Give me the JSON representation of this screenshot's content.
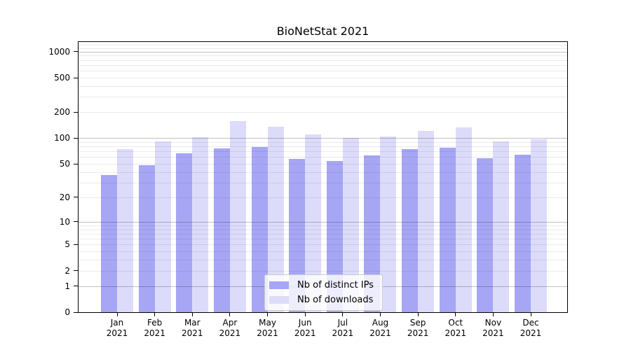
{
  "title": "BioNetStat 2021",
  "chart_data": {
    "type": "bar",
    "title": "BioNetStat 2021",
    "xlabel": "",
    "ylabel": "",
    "scale": "log1p",
    "grid": true,
    "categories": [
      "Jan 2021",
      "Feb 2021",
      "Mar 2021",
      "Apr 2021",
      "May 2021",
      "Jun 2021",
      "Jul 2021",
      "Aug 2021",
      "Sep 2021",
      "Oct 2021",
      "Nov 2021",
      "Dec 2021"
    ],
    "x_tick_months": [
      "Jan",
      "Feb",
      "Mar",
      "Apr",
      "May",
      "Jun",
      "Jul",
      "Aug",
      "Sep",
      "Oct",
      "Nov",
      "Dec"
    ],
    "x_tick_year": "2021",
    "series": [
      {
        "name": "Nb of distinct IPs",
        "color": "#a6a6f5",
        "values": [
          37,
          48,
          67,
          76,
          79,
          57,
          54,
          63,
          75,
          77,
          58,
          64
        ]
      },
      {
        "name": "Nb of downloads",
        "color": "#dcdcfa",
        "values": [
          75,
          92,
          102,
          158,
          136,
          110,
          101,
          105,
          121,
          134,
          92,
          97
        ]
      }
    ],
    "y_ticks": [
      0,
      1,
      2,
      5,
      10,
      20,
      50,
      100,
      200,
      500,
      1000
    ],
    "ylim": [
      0,
      1290
    ],
    "legend_position": "lower center",
    "colors": {
      "major_grid": "#c4c4c4",
      "minor_grid": "#e9e9e9",
      "spine": "#000000"
    }
  }
}
